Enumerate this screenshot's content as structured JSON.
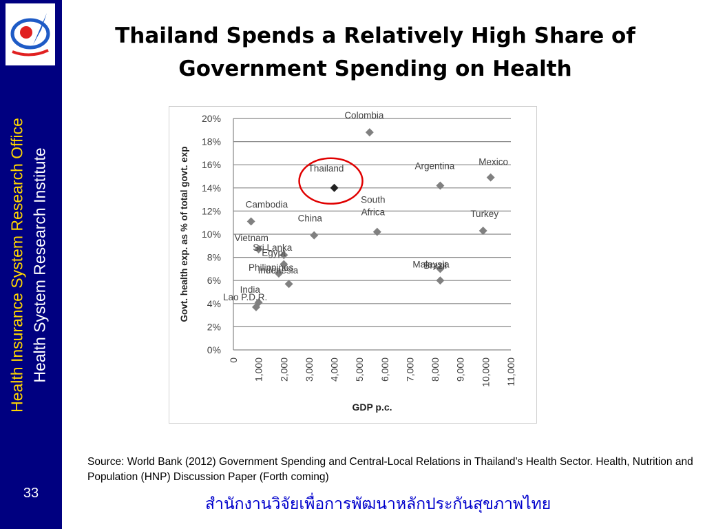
{
  "sidebar": {
    "line1": "Health Insurance System Research Office",
    "line2": "Health System Research Institute",
    "slide_number": "33"
  },
  "slide": {
    "title_line1": "Thailand Spends a Relatively High Share of",
    "title_line2": "Government  Spending on Health"
  },
  "colors": {
    "sidebar": "#000080",
    "sidebar_line1": "#FFD700",
    "marker": "#808080",
    "highlight_marker": "#222222",
    "highlight_circle": "#E00000",
    "footer_text": "#0000CC"
  },
  "chart_data": {
    "type": "scatter",
    "xlabel": "GDP p.c.",
    "ylabel": "Govt. health exp. as % of total govt. exp",
    "xlim": [
      0,
      11000
    ],
    "ylim": [
      0,
      20
    ],
    "x_ticks": [
      "0",
      "1,000",
      "2,000",
      "3,000",
      "4,000",
      "5,000",
      "6,000",
      "7,000",
      "8,000",
      "9,000",
      "10,000",
      "11,000"
    ],
    "y_ticks": [
      "0%",
      "2%",
      "4%",
      "6%",
      "8%",
      "10%",
      "12%",
      "14%",
      "16%",
      "18%",
      "20%"
    ],
    "grid": "horizontal",
    "points": [
      {
        "label": "Colombia",
        "x": 5400,
        "y": 18.8
      },
      {
        "label": "Thailand",
        "x": 4000,
        "y": 14.0,
        "highlight": true
      },
      {
        "label": "Argentina",
        "x": 8200,
        "y": 14.2
      },
      {
        "label": "Mexico",
        "x": 10200,
        "y": 14.9
      },
      {
        "label": "Cambodia",
        "x": 700,
        "y": 11.1
      },
      {
        "label": "South Africa",
        "x": 5700,
        "y": 10.2
      },
      {
        "label": "China",
        "x": 3200,
        "y": 9.9
      },
      {
        "label": "Turkey",
        "x": 9900,
        "y": 10.3
      },
      {
        "label": "Vietnam",
        "x": 1000,
        "y": 8.7
      },
      {
        "label": "Sri Lanka",
        "x": 2000,
        "y": 8.2
      },
      {
        "label": "Egypt",
        "x": 2000,
        "y": 7.4
      },
      {
        "label": "Philippines",
        "x": 1800,
        "y": 6.6
      },
      {
        "label": "Indonesia",
        "x": 2200,
        "y": 5.7
      },
      {
        "label": "Malaysia",
        "x": 8200,
        "y": 7.0
      },
      {
        "label": "Brazil",
        "x": 8200,
        "y": 6.0
      },
      {
        "label": "India",
        "x": 1000,
        "y": 4.1
      },
      {
        "label": "Lao P.D.R.",
        "x": 900,
        "y": 3.7
      }
    ]
  },
  "source_text": "Source: World Bank (2012) Government Spending and Central-Local Relations in Thailand’s Health Sector. Health, Nutrition and Population (HNP) Discussion Paper (Forth coming)",
  "footer_thai": "สำนักงานวิจัยเพื่อการพัฒนาหลักประกันสุขภาพไทย"
}
